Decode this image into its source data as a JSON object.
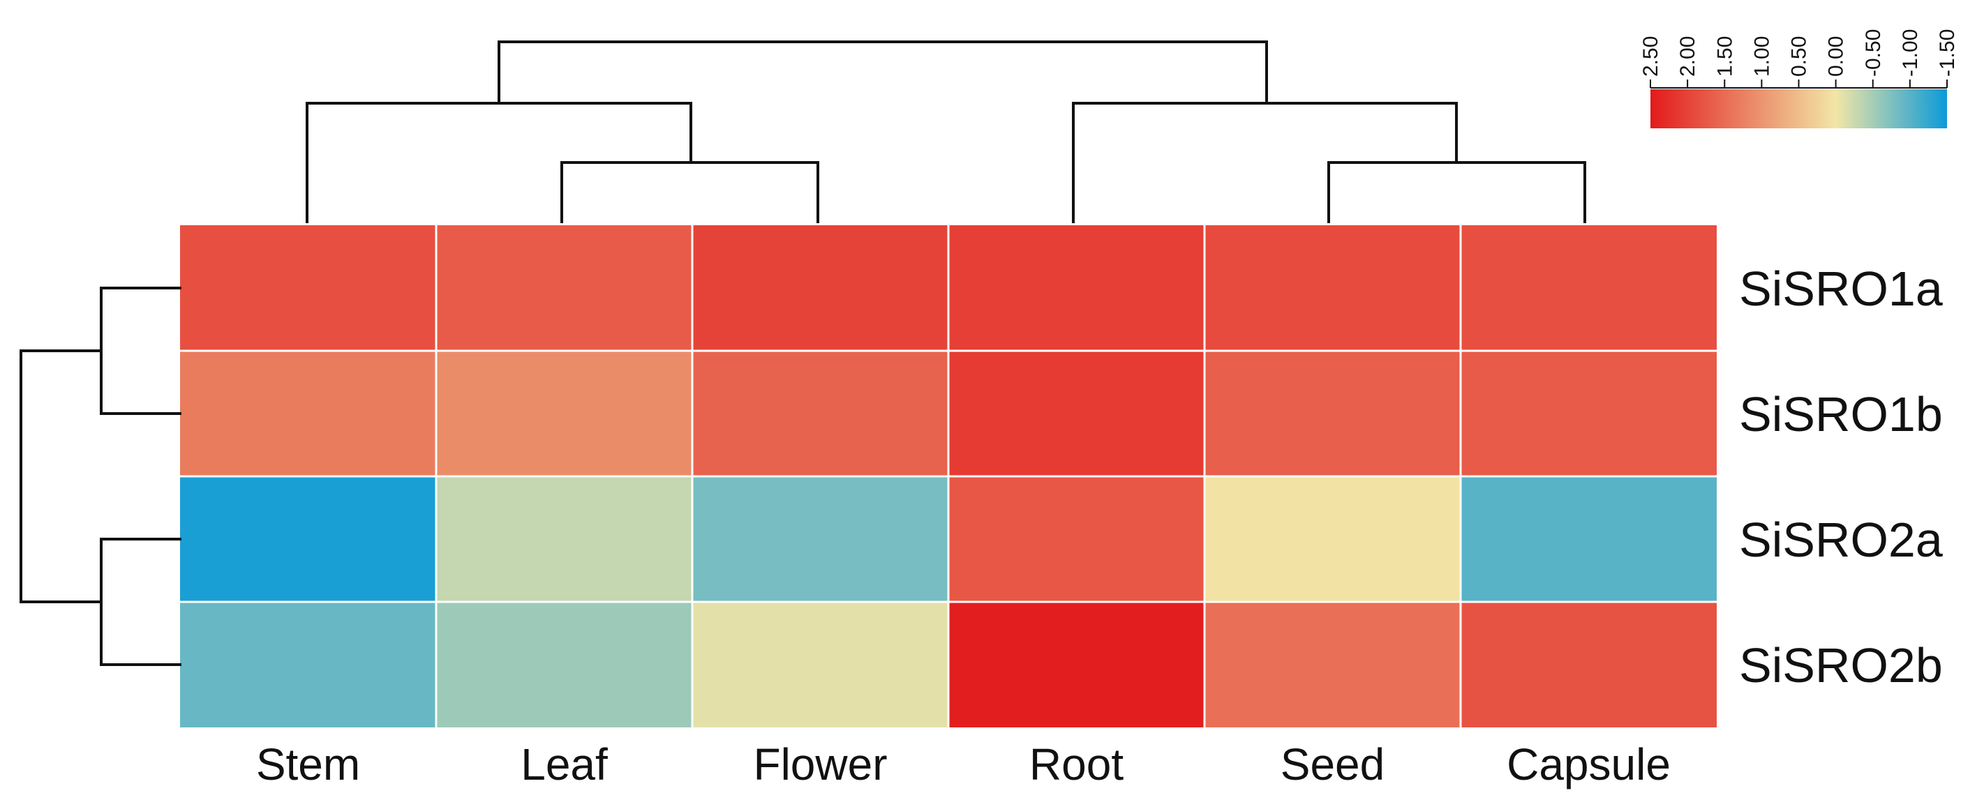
{
  "chart_data": {
    "type": "heatmap",
    "title": "",
    "columns": [
      "Stem",
      "Leaf",
      "Flower",
      "Root",
      "Seed",
      "Capsule"
    ],
    "rows": [
      "SiSRO1a",
      "SiSRO1b",
      "SiSRO2a",
      "SiSRO2b"
    ],
    "values": [
      [
        1.85,
        1.7,
        2.0,
        2.05,
        1.9,
        1.85
      ],
      [
        1.3,
        1.1,
        1.6,
        2.1,
        1.65,
        1.7
      ],
      [
        -1.4,
        -0.3,
        -0.8,
        1.75,
        0.05,
        -1.0
      ],
      [
        -0.9,
        -0.55,
        -0.1,
        2.45,
        1.45,
        1.8
      ]
    ],
    "color_scale": {
      "min": -1.5,
      "max": 2.5,
      "colors": [
        "#0b9ad8",
        "#f2e6a6",
        "#e31a1c"
      ],
      "stops": [
        -1.5,
        0.0,
        2.5
      ],
      "ticks": [
        "2.50",
        "2.00",
        "1.50",
        "1.00",
        "0.50",
        "0.00",
        "-0.50",
        "-1.00",
        "-1.50"
      ]
    },
    "column_dendrogram": "((Stem,(Leaf,Flower)),(Root,(Seed,Capsule)))",
    "row_dendrogram": "((SiSRO1a,SiSRO1b),(SiSRO2a,SiSRO2b))"
  }
}
